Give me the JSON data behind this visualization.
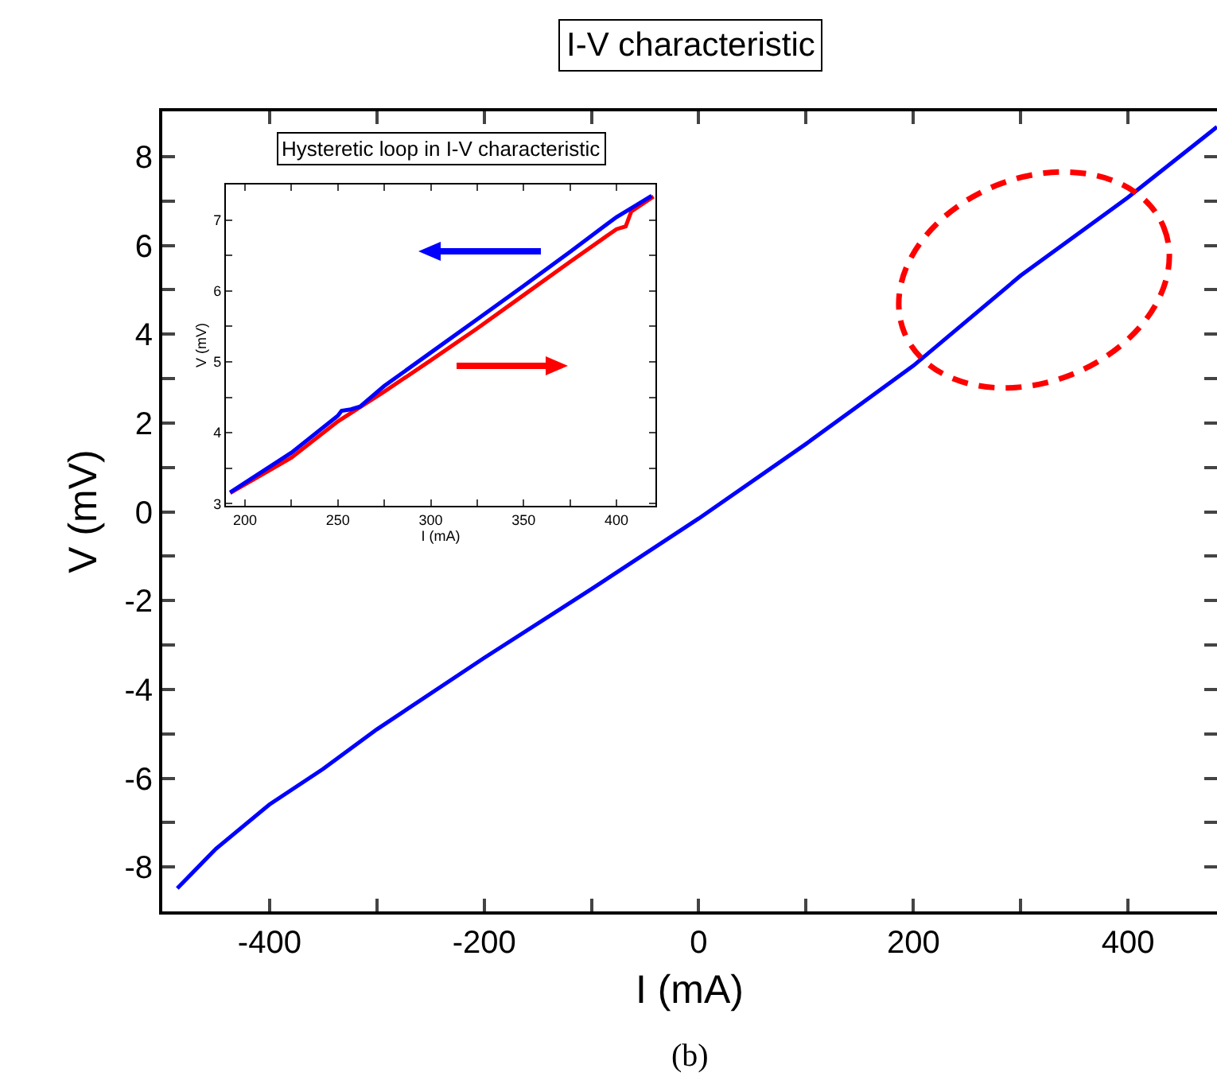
{
  "chart_data": [
    {
      "type": "line",
      "title": "I-V characteristic",
      "xlabel": "I (mA)",
      "ylabel": "V (mV)",
      "xlim": [
        -500,
        483
      ],
      "ylim": [
        -9,
        9.02
      ],
      "xticks": [
        {
          "value": -500,
          "label": null
        },
        -400,
        {
          "value": -300,
          "label": null
        },
        -200,
        {
          "value": -100,
          "label": null
        },
        0,
        {
          "value": 100,
          "label": null
        },
        200,
        {
          "value": 300,
          "label": null
        },
        400
      ],
      "yticks": [
        {
          "value": -9,
          "label": null
        },
        -8,
        {
          "value": -7,
          "label": null
        },
        -6,
        {
          "value": -5,
          "label": null
        },
        -4,
        {
          "value": -3,
          "label": null
        },
        -2,
        {
          "value": -1,
          "label": null
        },
        0,
        {
          "value": 1,
          "label": null
        },
        2,
        {
          "value": 3,
          "label": null
        },
        4,
        {
          "value": 5,
          "label": null
        },
        6,
        {
          "value": 7,
          "label": null
        },
        8,
        {
          "value": 9,
          "label": null
        }
      ],
      "series": [
        {
          "color": "#0000ff",
          "x": [
            -486,
            -450,
            -400,
            -350,
            -300,
            -200,
            -100,
            0,
            100,
            200,
            300,
            400,
            483
          ],
          "values": [
            -8.48,
            -7.59,
            -6.59,
            -5.79,
            -4.9,
            -3.29,
            -1.74,
            -0.15,
            1.53,
            3.29,
            5.32,
            7.08,
            8.67
          ]
        }
      ],
      "annotations": [
        "(b)"
      ]
    },
    {
      "type": "line",
      "title": "Hysteretic loop in I-V characteristic",
      "xlabel": "I (mA)",
      "ylabel": "V (mV)",
      "xlim": [
        189.7,
        421
      ],
      "ylim": [
        2.97,
        7.5
      ],
      "xticks": [
        200,
        {
          "value": 225,
          "label": null
        },
        250,
        {
          "value": 275,
          "label": null
        },
        300,
        {
          "value": 325,
          "label": null
        },
        350,
        {
          "value": 375,
          "label": null
        },
        400
      ],
      "yticks": [
        3,
        {
          "value": 3.5,
          "label": null
        },
        4,
        {
          "value": 4.5,
          "label": null
        },
        5,
        {
          "value": 5.5,
          "label": null
        },
        6,
        {
          "value": 6.5,
          "label": null
        },
        7
      ],
      "series": [
        {
          "color": "#ff0000",
          "x": [
            192,
            225,
            250,
            275,
            300,
            325,
            350,
            375,
            400,
            405,
            408,
            420
          ],
          "values": [
            3.15,
            3.65,
            4.16,
            4.58,
            5.02,
            5.47,
            5.94,
            6.41,
            6.87,
            6.91,
            7.12,
            7.33
          ]
        },
        {
          "color": "#0000ff",
          "x": [
            192,
            225,
            250,
            252,
            257,
            262,
            275,
            300,
            325,
            350,
            375,
            400,
            419
          ],
          "values": [
            3.16,
            3.72,
            4.24,
            4.31,
            4.33,
            4.37,
            4.66,
            5.13,
            5.6,
            6.07,
            6.55,
            7.04,
            7.34
          ]
        }
      ]
    }
  ]
}
